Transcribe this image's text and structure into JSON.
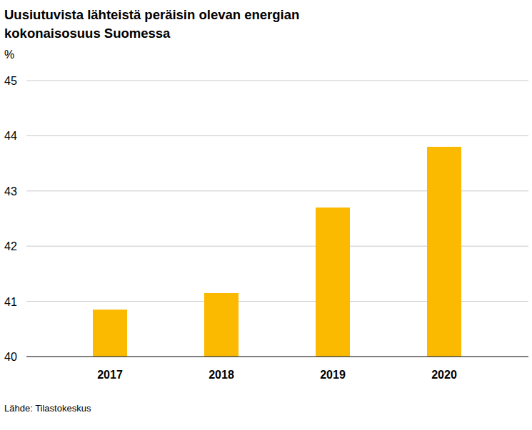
{
  "chart_data": {
    "type": "bar",
    "title": "Uusiutuvista lähteistä peräisin olevan energian kokonaisosuus Suomessa",
    "y_label": "%",
    "source": "Lähde: Tilastokeskus",
    "categories": [
      "2017",
      "2018",
      "2019",
      "2020"
    ],
    "values": [
      40.85,
      41.15,
      42.7,
      43.8
    ],
    "color": "#fbb900",
    "ylim": [
      40,
      45
    ],
    "yticks": [
      40,
      41,
      42,
      43,
      44,
      45
    ],
    "grid": true
  }
}
